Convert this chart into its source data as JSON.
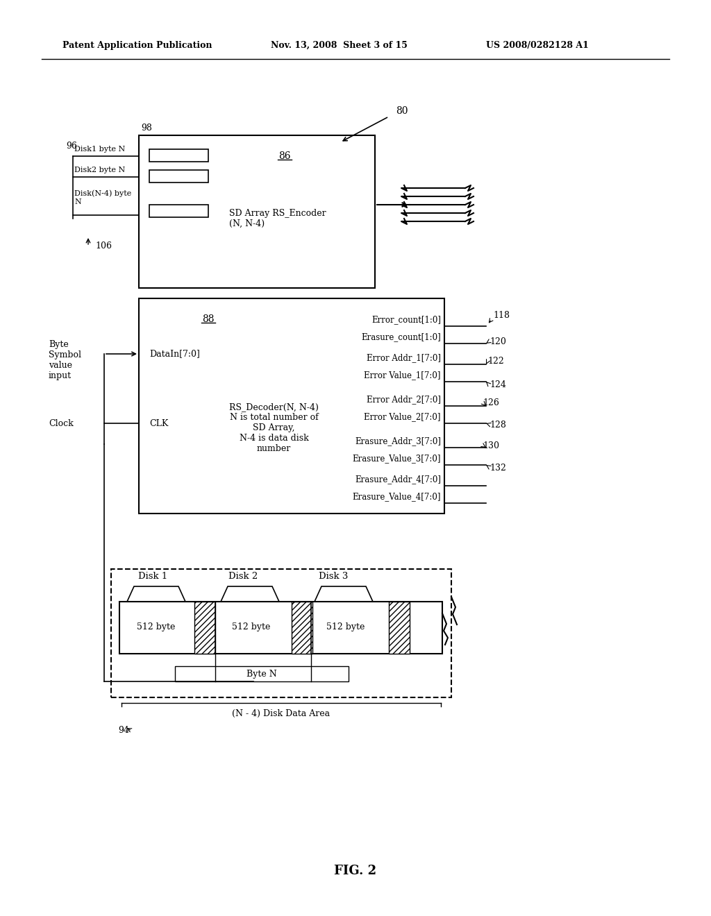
{
  "bg_color": "#ffffff",
  "header_left": "Patent Application Publication",
  "header_mid": "Nov. 13, 2008  Sheet 3 of 15",
  "header_right": "US 2008/0282128 A1",
  "fig_label": "FIG. 2",
  "label_80": "80",
  "label_86": "86",
  "label_88": "88",
  "label_94": "94",
  "label_96": "96",
  "label_98": "98",
  "label_106": "106",
  "label_118": "118",
  "label_120": "120",
  "label_122": "122",
  "label_124": "124",
  "label_126": "126",
  "label_128": "128",
  "label_130": "130",
  "label_132": "132",
  "encoder_title": "SD Array RS_Encoder\n(N, N-4)",
  "encoder_inputs": [
    "Disk1 byte N",
    "Disk2 byte N",
    "Disk(N-4) byte\nN"
  ],
  "decoder_label": "DataIn[7:0]",
  "clk_label": "CLK",
  "clock_label": "Clock",
  "decoder_center_text": "RS_Decoder(N, N-4)\nN is total number of\nSD Array,\nN-4 is data disk\nnumber",
  "byte_symbol_text": "Byte\nSymbol\nvalue\ninput",
  "decoder_outputs": [
    "Error_count[1:0]",
    "Erasure_count[1:0]",
    "Error Addr_1[7:0]",
    "Error Value_1[7:0]",
    "Error Addr_2[7:0]",
    "Error Value_2[7:0]",
    "Erasure_Addr_3[7:0]",
    "Erasure_Value_3[7:0]",
    "Erasure_Addr_4[7:0]",
    "Erasure_Value_4[7:0]"
  ],
  "disk_labels": [
    "Disk 1",
    "Disk 2",
    "Disk 3"
  ],
  "disk_byte_label": "512 byte",
  "byte_n_label": "Byte N",
  "disk_area_label": "(N - 4) Disk Data Area"
}
